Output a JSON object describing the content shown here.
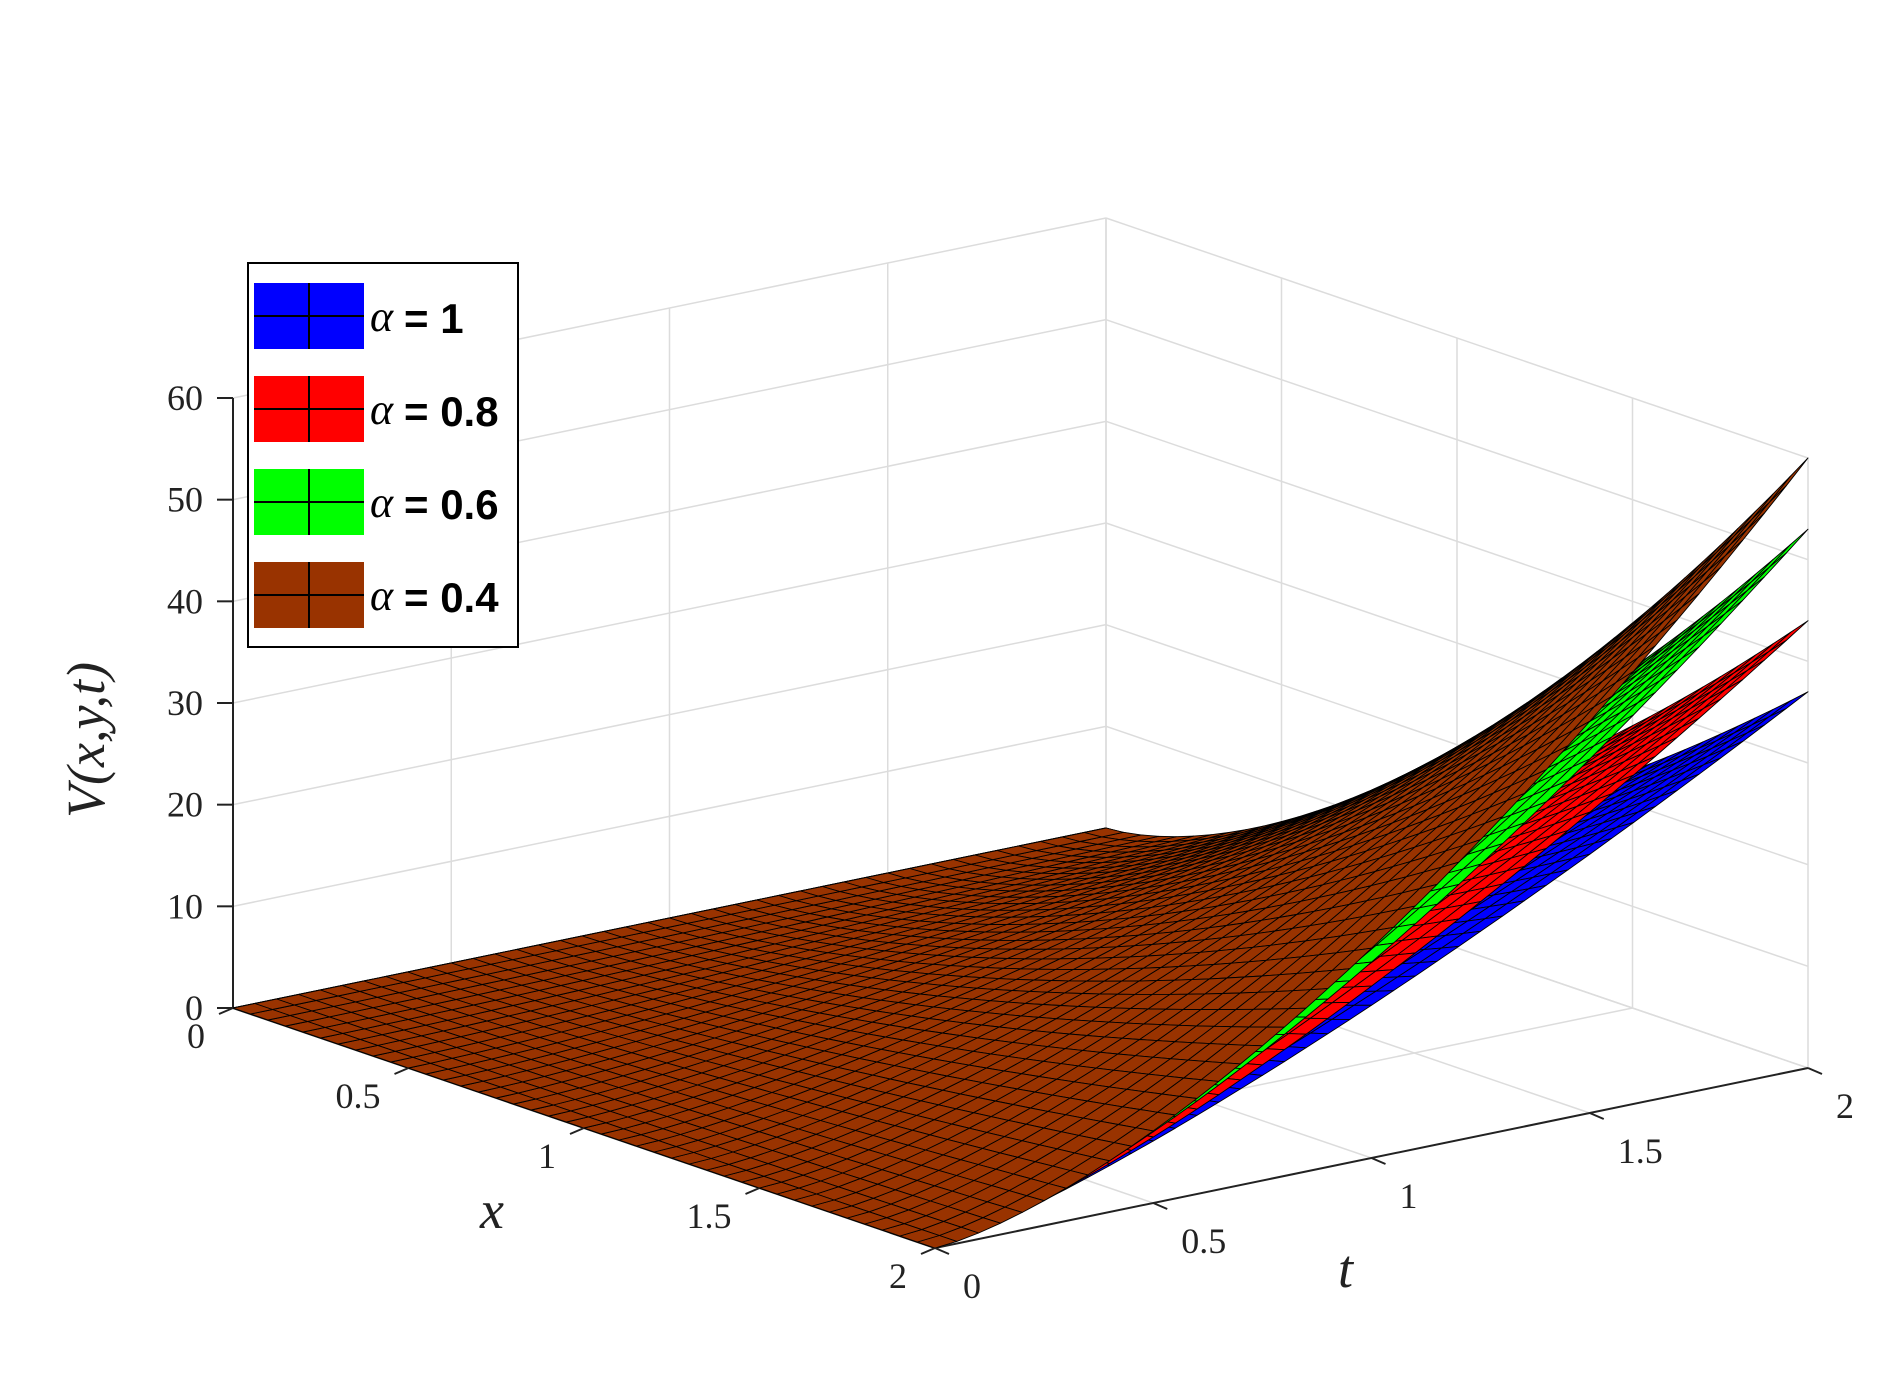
{
  "chart_data": {
    "type": "surface",
    "xlabel": "x",
    "ylabel": "t",
    "zlabel": "V(x,y,t)",
    "x_ticks": [
      "0",
      "0.5",
      "1",
      "1.5",
      "2"
    ],
    "t_ticks": [
      "0",
      "0.5",
      "1",
      "1.5",
      "2"
    ],
    "z_ticks": [
      "0",
      "10",
      "20",
      "30",
      "40",
      "50",
      "60"
    ],
    "xlim": [
      0,
      2
    ],
    "tlim": [
      0,
      2
    ],
    "zlim": [
      0,
      60
    ],
    "grid": true,
    "legend_position": "top-left",
    "series": [
      {
        "name": "α = 1",
        "alpha_label": "α",
        "value_label": "= 1",
        "alpha": 1.0,
        "color": "#0000ff",
        "corner_values": {
          "x0_t0": 0,
          "x0_t2": 0,
          "x2_t0": 0,
          "x2_t2": 37
        }
      },
      {
        "name": "α = 0.8",
        "alpha_label": "α",
        "value_label": "= 0.8",
        "alpha": 0.8,
        "color": "#ff0000",
        "corner_values": {
          "x0_t0": 0,
          "x0_t2": 0,
          "x2_t0": 0,
          "x2_t2": 44
        }
      },
      {
        "name": "α = 0.6",
        "alpha_label": "α",
        "value_label": "= 0.6",
        "alpha": 0.6,
        "color": "#00ff00",
        "corner_values": {
          "x0_t0": 0,
          "x0_t2": 0,
          "x2_t0": 0,
          "x2_t2": 53
        }
      },
      {
        "name": "α = 0.4",
        "alpha_label": "α",
        "value_label": "= 0.4",
        "alpha": 0.4,
        "color": "#993300",
        "corner_values": {
          "x0_t0": 0,
          "x0_t2": 0,
          "x2_t0": 0,
          "x2_t2": 60
        }
      }
    ]
  }
}
